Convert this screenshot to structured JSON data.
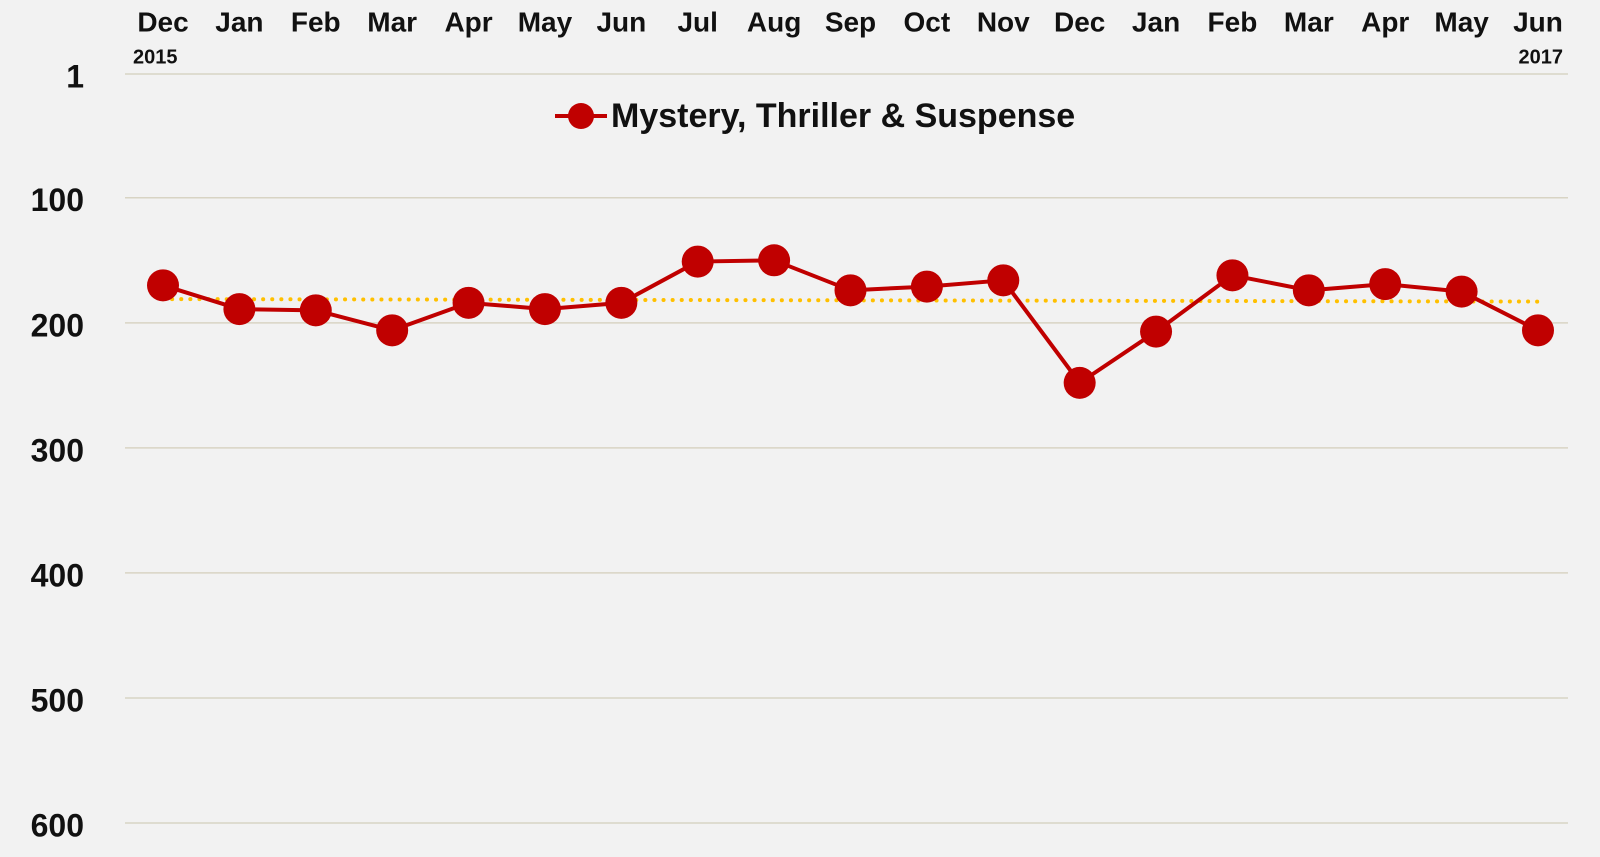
{
  "chart_data": {
    "type": "line",
    "categories": [
      "Dec",
      "Jan",
      "Feb",
      "Mar",
      "Apr",
      "May",
      "Jun",
      "Jul",
      "Aug",
      "Sep",
      "Oct",
      "Nov",
      "Dec",
      "Jan",
      "Feb",
      "Mar",
      "Apr",
      "May",
      "Jun"
    ],
    "category_years": [
      "2015",
      null,
      null,
      null,
      null,
      null,
      null,
      null,
      null,
      null,
      null,
      null,
      null,
      null,
      null,
      null,
      null,
      null,
      "2017"
    ],
    "series": [
      {
        "name": "Mystery, Thriller & Suspense",
        "color": "#c00000",
        "values": [
          170,
          189,
          190,
          206,
          184,
          189,
          184,
          151,
          150,
          174,
          171,
          166,
          248,
          207,
          162,
          174,
          169,
          175,
          206
        ]
      }
    ],
    "trendline": {
      "color": "#ffc000",
      "values": [
        181,
        183
      ]
    },
    "ylim": [
      1,
      600
    ],
    "yticks": [
      1,
      100,
      200,
      300,
      400,
      500,
      600
    ],
    "y_inverted": true,
    "grid": true,
    "legend": "top"
  }
}
